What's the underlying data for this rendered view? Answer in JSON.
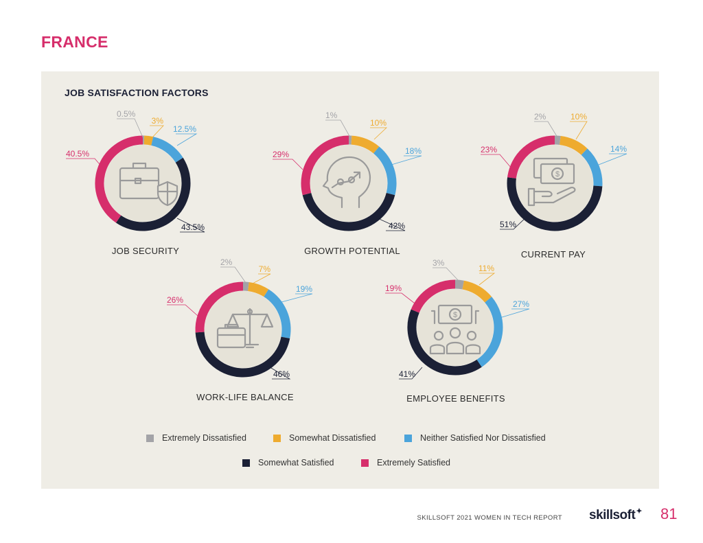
{
  "page": {
    "title": "FRANCE",
    "section_title": "JOB SATISFACTION FACTORS",
    "footer_text": "SKILLSOFT 2021 WOMEN IN TECH REPORT",
    "logo_text": "skillsoft",
    "page_number": "81"
  },
  "colors": {
    "extremely_dissatisfied": "#a3a3a7",
    "somewhat_dissatisfied": "#eeab2f",
    "neither": "#4ba4db",
    "somewhat_satisfied": "#1b2035",
    "extremely_satisfied": "#d62e6b",
    "accent": "#d62e6b",
    "panel": "#efede6",
    "donut_center": "#e6e3d8",
    "icon": "#9a9a9a"
  },
  "legend": [
    {
      "label": "Extremely Dissatisfied",
      "color": "#a3a3a7"
    },
    {
      "label": "Somewhat Dissatisfied",
      "color": "#eeab2f"
    },
    {
      "label": "Neither Satisfied Nor Dissatisfied",
      "color": "#4ba4db"
    },
    {
      "label": "Somewhat Satisfied",
      "color": "#1b2035"
    },
    {
      "label": "Extremely Satisfied",
      "color": "#d62e6b"
    }
  ],
  "chart_data": [
    {
      "type": "pie",
      "title": "JOB SECURITY",
      "icon": "briefcase-shield-icon",
      "categories": [
        "Extremely Dissatisfied",
        "Somewhat Dissatisfied",
        "Neither Satisfied Nor Dissatisfied",
        "Somewhat Satisfied",
        "Extremely Satisfied"
      ],
      "values": [
        0.5,
        3,
        12.5,
        43.5,
        40.5
      ],
      "labels": [
        "0.5%",
        "3%",
        "12.5%",
        "43.5%",
        "40.5%"
      ]
    },
    {
      "type": "pie",
      "title": "GROWTH POTENTIAL",
      "icon": "head-growth-icon",
      "categories": [
        "Extremely Dissatisfied",
        "Somewhat Dissatisfied",
        "Neither Satisfied Nor Dissatisfied",
        "Somewhat Satisfied",
        "Extremely Satisfied"
      ],
      "values": [
        1,
        10,
        18,
        42,
        29
      ],
      "labels": [
        "1%",
        "10%",
        "18%",
        "42%",
        "29%"
      ]
    },
    {
      "type": "pie",
      "title": "CURRENT PAY",
      "icon": "hand-money-icon",
      "categories": [
        "Extremely Dissatisfied",
        "Somewhat Dissatisfied",
        "Neither Satisfied Nor Dissatisfied",
        "Somewhat Satisfied",
        "Extremely Satisfied"
      ],
      "values": [
        2,
        10,
        14,
        51,
        23
      ],
      "labels": [
        "2%",
        "10%",
        "14%",
        "51%",
        "23%"
      ]
    },
    {
      "type": "pie",
      "title": "WORK-LIFE BALANCE",
      "icon": "scale-briefcase-icon",
      "categories": [
        "Extremely Dissatisfied",
        "Somewhat Dissatisfied",
        "Neither Satisfied Nor Dissatisfied",
        "Somewhat Satisfied",
        "Extremely Satisfied"
      ],
      "values": [
        2,
        7,
        19,
        46,
        26
      ],
      "labels": [
        "2%",
        "7%",
        "19%",
        "46%",
        "26%"
      ]
    },
    {
      "type": "pie",
      "title": "EMPLOYEE BENEFITS",
      "icon": "people-money-icon",
      "categories": [
        "Extremely Dissatisfied",
        "Somewhat Dissatisfied",
        "Neither Satisfied Nor Dissatisfied",
        "Somewhat Satisfied",
        "Extremely Satisfied"
      ],
      "values": [
        3,
        11,
        27,
        41,
        19
      ],
      "labels": [
        "3%",
        "11%",
        "27%",
        "41%",
        "19%"
      ]
    }
  ]
}
